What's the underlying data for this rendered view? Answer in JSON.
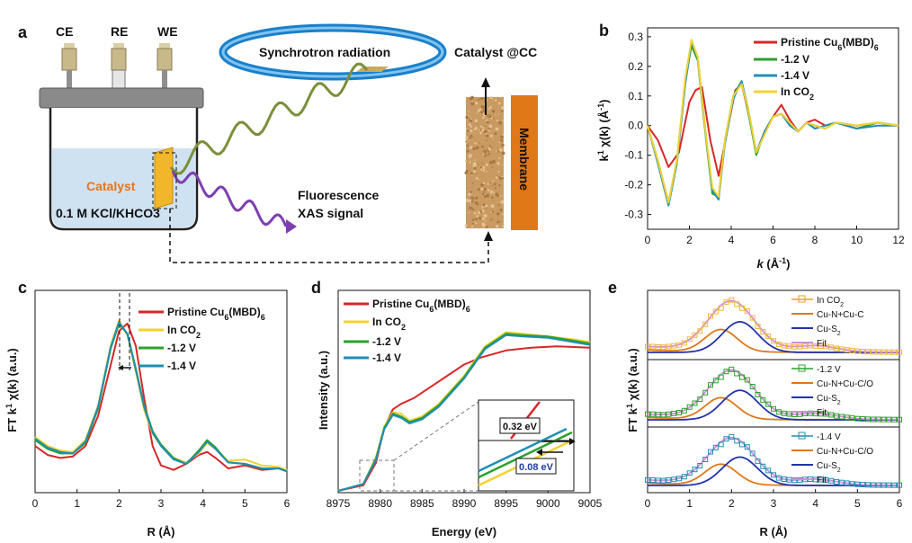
{
  "figure": {
    "panel_a": {
      "label": "a",
      "electrodes": [
        "CE",
        "RE",
        "WE"
      ],
      "synchrotron": "Synchrotron radiation",
      "catalyst_label": "Catalyst",
      "electrolyte": "0.1 M KCl/KHCO3",
      "fluorescence_line1": "Fluorescence",
      "fluorescence_line2": "XAS signal",
      "catalyst_cc": "Catalyst @CC",
      "membrane": "Membrane"
    },
    "panel_b": {
      "label": "b"
    },
    "panel_c": {
      "label": "c"
    },
    "panel_d": {
      "label": "d",
      "inset_top": "0.32 eV",
      "inset_bottom": "0.08 eV"
    },
    "panel_e": {
      "label": "e"
    }
  },
  "chart_data": [
    {
      "id": "b",
      "type": "line",
      "xlabel": "k (Å-1)",
      "ylabel": "k1 χ(k) (Å-1)",
      "xlim": [
        0,
        12
      ],
      "ylim": [
        -0.35,
        0.33
      ],
      "xticks": [
        0,
        2,
        4,
        6,
        8,
        10,
        12
      ],
      "yticks": [
        -0.3,
        -0.2,
        -0.1,
        0.0,
        0.1,
        0.2,
        0.3
      ],
      "legend": [
        "Pristine Cu6(MBD)6",
        "-1.2 V",
        "-1.4 V",
        "In CO2"
      ],
      "series": [
        {
          "name": "Pristine Cu6(MBD)6",
          "color": "#d62728",
          "x": [
            0,
            0.5,
            1.0,
            1.5,
            2.0,
            2.3,
            2.6,
            3.0,
            3.4,
            3.8,
            4.2,
            4.5,
            4.8,
            5.2,
            5.6,
            6.0,
            6.4,
            6.8,
            7.2,
            7.6,
            8.0,
            8.5,
            9,
            10,
            11,
            12
          ],
          "y": [
            0.0,
            -0.05,
            -0.14,
            -0.09,
            0.08,
            0.12,
            0.13,
            -0.05,
            -0.17,
            -0.02,
            0.12,
            0.14,
            0.05,
            -0.09,
            -0.02,
            0.03,
            0.07,
            0.02,
            -0.02,
            0.01,
            0.02,
            0.0,
            0.01,
            0.0,
            0.01,
            0.0
          ]
        },
        {
          "name": "-1.2 V",
          "color": "#2ca02c",
          "x": [
            0,
            0.5,
            1.0,
            1.4,
            1.8,
            2.1,
            2.4,
            2.8,
            3.1,
            3.4,
            3.7,
            4.1,
            4.5,
            4.8,
            5.2,
            5.6,
            6.0,
            6.4,
            6.8,
            7.2,
            7.6,
            8.0,
            8.5,
            9,
            10,
            11,
            12
          ],
          "y": [
            0.0,
            -0.12,
            -0.26,
            -0.12,
            0.15,
            0.27,
            0.22,
            -0.05,
            -0.23,
            -0.24,
            -0.05,
            0.1,
            0.15,
            0.05,
            -0.1,
            -0.02,
            0.03,
            0.04,
            0.01,
            -0.02,
            0.01,
            0.0,
            -0.01,
            0.01,
            -0.01,
            0.01,
            0.0
          ]
        },
        {
          "name": "-1.4 V",
          "color": "#1f8fb4",
          "x": [
            0,
            0.5,
            1.0,
            1.4,
            1.8,
            2.1,
            2.4,
            2.8,
            3.1,
            3.4,
            3.7,
            4.1,
            4.5,
            4.8,
            5.2,
            5.6,
            6.0,
            6.4,
            6.8,
            7.2,
            7.6,
            8.0,
            8.5,
            9,
            10,
            11,
            12
          ],
          "y": [
            0.0,
            -0.13,
            -0.27,
            -0.13,
            0.14,
            0.28,
            0.23,
            -0.04,
            -0.22,
            -0.25,
            -0.06,
            0.09,
            0.15,
            0.06,
            -0.09,
            -0.02,
            0.03,
            0.04,
            0.0,
            -0.02,
            0.01,
            -0.01,
            0.0,
            0.01,
            -0.01,
            0.0,
            0.0
          ]
        },
        {
          "name": "In CO2",
          "color": "#f2d230",
          "x": [
            0,
            0.5,
            1.0,
            1.4,
            1.8,
            2.1,
            2.4,
            2.8,
            3.1,
            3.4,
            3.7,
            4.1,
            4.5,
            4.8,
            5.2,
            5.6,
            6.0,
            6.4,
            6.8,
            7.2,
            7.6,
            8.0,
            8.5,
            9,
            10,
            11,
            12
          ],
          "y": [
            0.0,
            -0.12,
            -0.26,
            -0.12,
            0.16,
            0.29,
            0.23,
            -0.04,
            -0.21,
            -0.24,
            -0.05,
            0.1,
            0.14,
            0.06,
            -0.09,
            -0.03,
            0.03,
            0.04,
            0.01,
            -0.02,
            0.01,
            0.0,
            -0.01,
            0.01,
            0.0,
            0.01,
            0.0
          ]
        }
      ]
    },
    {
      "id": "c",
      "type": "line",
      "xlabel": "R (Å)",
      "ylabel": "FT k1 χ(k) (a.u.)",
      "xlim": [
        0,
        6
      ],
      "ylim": [
        0,
        1.15
      ],
      "xticks": [
        0,
        1,
        2,
        3,
        4,
        5,
        6
      ],
      "legend": [
        "Pristine Cu6(MBD)6",
        "In CO2",
        "-1.2 V",
        "-1.4 V"
      ],
      "series": [
        {
          "name": "Pristine Cu6(MBD)6",
          "color": "#d62728",
          "x": [
            0,
            0.3,
            0.6,
            0.9,
            1.2,
            1.5,
            1.8,
            2.0,
            2.2,
            2.4,
            2.6,
            2.8,
            3.0,
            3.3,
            3.6,
            3.9,
            4.1,
            4.3,
            4.6,
            5.0,
            5.4,
            5.8,
            6.0
          ],
          "y": [
            0.18,
            0.12,
            0.1,
            0.11,
            0.18,
            0.38,
            0.72,
            0.95,
            1.0,
            0.85,
            0.5,
            0.18,
            0.05,
            0.02,
            0.06,
            0.12,
            0.14,
            0.1,
            0.03,
            0.05,
            0.02,
            0.03,
            0.01
          ]
        },
        {
          "name": "In CO2",
          "color": "#f2d230",
          "x": [
            0,
            0.3,
            0.6,
            0.9,
            1.2,
            1.5,
            1.8,
            2.0,
            2.2,
            2.4,
            2.6,
            2.8,
            3.0,
            3.3,
            3.6,
            3.9,
            4.1,
            4.3,
            4.6,
            5.0,
            5.4,
            5.8,
            6.0
          ],
          "y": [
            0.24,
            0.18,
            0.15,
            0.14,
            0.22,
            0.45,
            0.85,
            1.02,
            0.92,
            0.68,
            0.42,
            0.26,
            0.18,
            0.1,
            0.07,
            0.13,
            0.2,
            0.16,
            0.08,
            0.09,
            0.05,
            0.04,
            0.02
          ]
        },
        {
          "name": "-1.2 V",
          "color": "#2ca02c",
          "x": [
            0,
            0.3,
            0.6,
            0.9,
            1.2,
            1.5,
            1.8,
            2.0,
            2.2,
            2.4,
            2.6,
            2.8,
            3.0,
            3.3,
            3.6,
            3.9,
            4.1,
            4.3,
            4.6,
            5.0,
            5.4,
            5.8,
            6.0
          ],
          "y": [
            0.22,
            0.16,
            0.13,
            0.13,
            0.2,
            0.43,
            0.83,
            1.0,
            0.93,
            0.7,
            0.45,
            0.28,
            0.19,
            0.1,
            0.06,
            0.15,
            0.22,
            0.17,
            0.07,
            0.06,
            0.03,
            0.03,
            0.01
          ]
        },
        {
          "name": "-1.4 V",
          "color": "#1f8fb4",
          "x": [
            0,
            0.3,
            0.6,
            0.9,
            1.2,
            1.5,
            1.8,
            2.0,
            2.2,
            2.4,
            2.6,
            2.8,
            3.0,
            3.3,
            3.6,
            3.9,
            4.1,
            4.3,
            4.6,
            5.0,
            5.4,
            5.8,
            6.0
          ],
          "y": [
            0.23,
            0.17,
            0.14,
            0.13,
            0.21,
            0.44,
            0.84,
            1.01,
            0.93,
            0.69,
            0.44,
            0.27,
            0.18,
            0.09,
            0.06,
            0.14,
            0.21,
            0.16,
            0.07,
            0.06,
            0.03,
            0.03,
            0.01
          ]
        }
      ]
    },
    {
      "id": "d",
      "type": "line",
      "xlabel": "Energy (eV)",
      "ylabel": "Intensity (a.u.)",
      "xlim": [
        8975,
        9005
      ],
      "ylim": [
        0,
        1.3
      ],
      "xticks": [
        8975,
        8980,
        8985,
        8990,
        8995,
        9000,
        9005
      ],
      "legend": [
        "Pristine Cu6(MBD)6",
        "In CO2",
        "-1.2 V",
        "-1.4 V"
      ],
      "series": [
        {
          "name": "Pristine Cu6(MBD)6",
          "color": "#d62728",
          "x": [
            8975,
            8978,
            8979.5,
            8980.5,
            8981.5,
            8982.5,
            8984,
            8986,
            8988,
            8990,
            8992,
            8995,
            8998,
            9001,
            9005
          ],
          "y": [
            0.0,
            0.04,
            0.2,
            0.45,
            0.58,
            0.62,
            0.66,
            0.74,
            0.82,
            0.9,
            0.95,
            1.0,
            1.02,
            1.03,
            1.02
          ]
        },
        {
          "name": "In CO2",
          "color": "#f2d230",
          "x": [
            8975,
            8978,
            8979.5,
            8980.5,
            8981.5,
            8982.5,
            8983.5,
            8985,
            8987,
            8990,
            8992.5,
            8995,
            8997,
            9000,
            9003,
            9005
          ],
          "y": [
            0.0,
            0.05,
            0.24,
            0.46,
            0.56,
            0.55,
            0.5,
            0.53,
            0.62,
            0.82,
            1.03,
            1.13,
            1.12,
            1.1,
            1.08,
            1.06
          ]
        },
        {
          "name": "-1.2 V",
          "color": "#2ca02c",
          "x": [
            8975,
            8978,
            8979.5,
            8980.5,
            8981.5,
            8982.5,
            8983.5,
            8985,
            8987,
            8990,
            8992.5,
            8995,
            8997,
            9000,
            9003,
            9005
          ],
          "y": [
            0.0,
            0.05,
            0.23,
            0.45,
            0.55,
            0.53,
            0.49,
            0.52,
            0.61,
            0.81,
            1.02,
            1.12,
            1.11,
            1.1,
            1.07,
            1.05
          ]
        },
        {
          "name": "-1.4 V",
          "color": "#1f8fb4",
          "x": [
            8975,
            8978,
            8979.5,
            8980.5,
            8981.5,
            8982.5,
            8983.5,
            8985,
            8987,
            8990,
            8992.5,
            8995,
            8997,
            9000,
            9003,
            9005
          ],
          "y": [
            0.0,
            0.05,
            0.22,
            0.44,
            0.54,
            0.52,
            0.48,
            0.51,
            0.6,
            0.8,
            1.01,
            1.11,
            1.1,
            1.09,
            1.06,
            1.04
          ]
        }
      ]
    },
    {
      "id": "e",
      "type": "line",
      "xlabel": "R (Å)",
      "ylabel": "FT k1 χ(k) (a.u.)",
      "xlim": [
        0,
        6
      ],
      "ylim": [
        0,
        3
      ],
      "xticks": [
        0,
        1,
        2,
        3,
        4,
        5,
        6
      ],
      "subplots": [
        {
          "legend": [
            "In CO2",
            "Cu-N+Cu-C",
            "Cu-S2",
            "Fit"
          ]
        },
        {
          "legend": [
            "-1.2 V",
            "Cu-N+Cu-C/O",
            "Cu-S2",
            "Fit"
          ]
        },
        {
          "legend": [
            "-1.4 V",
            "Cu-N+Cu-C/O",
            "Cu-S2",
            "Fit"
          ]
        }
      ]
    }
  ]
}
